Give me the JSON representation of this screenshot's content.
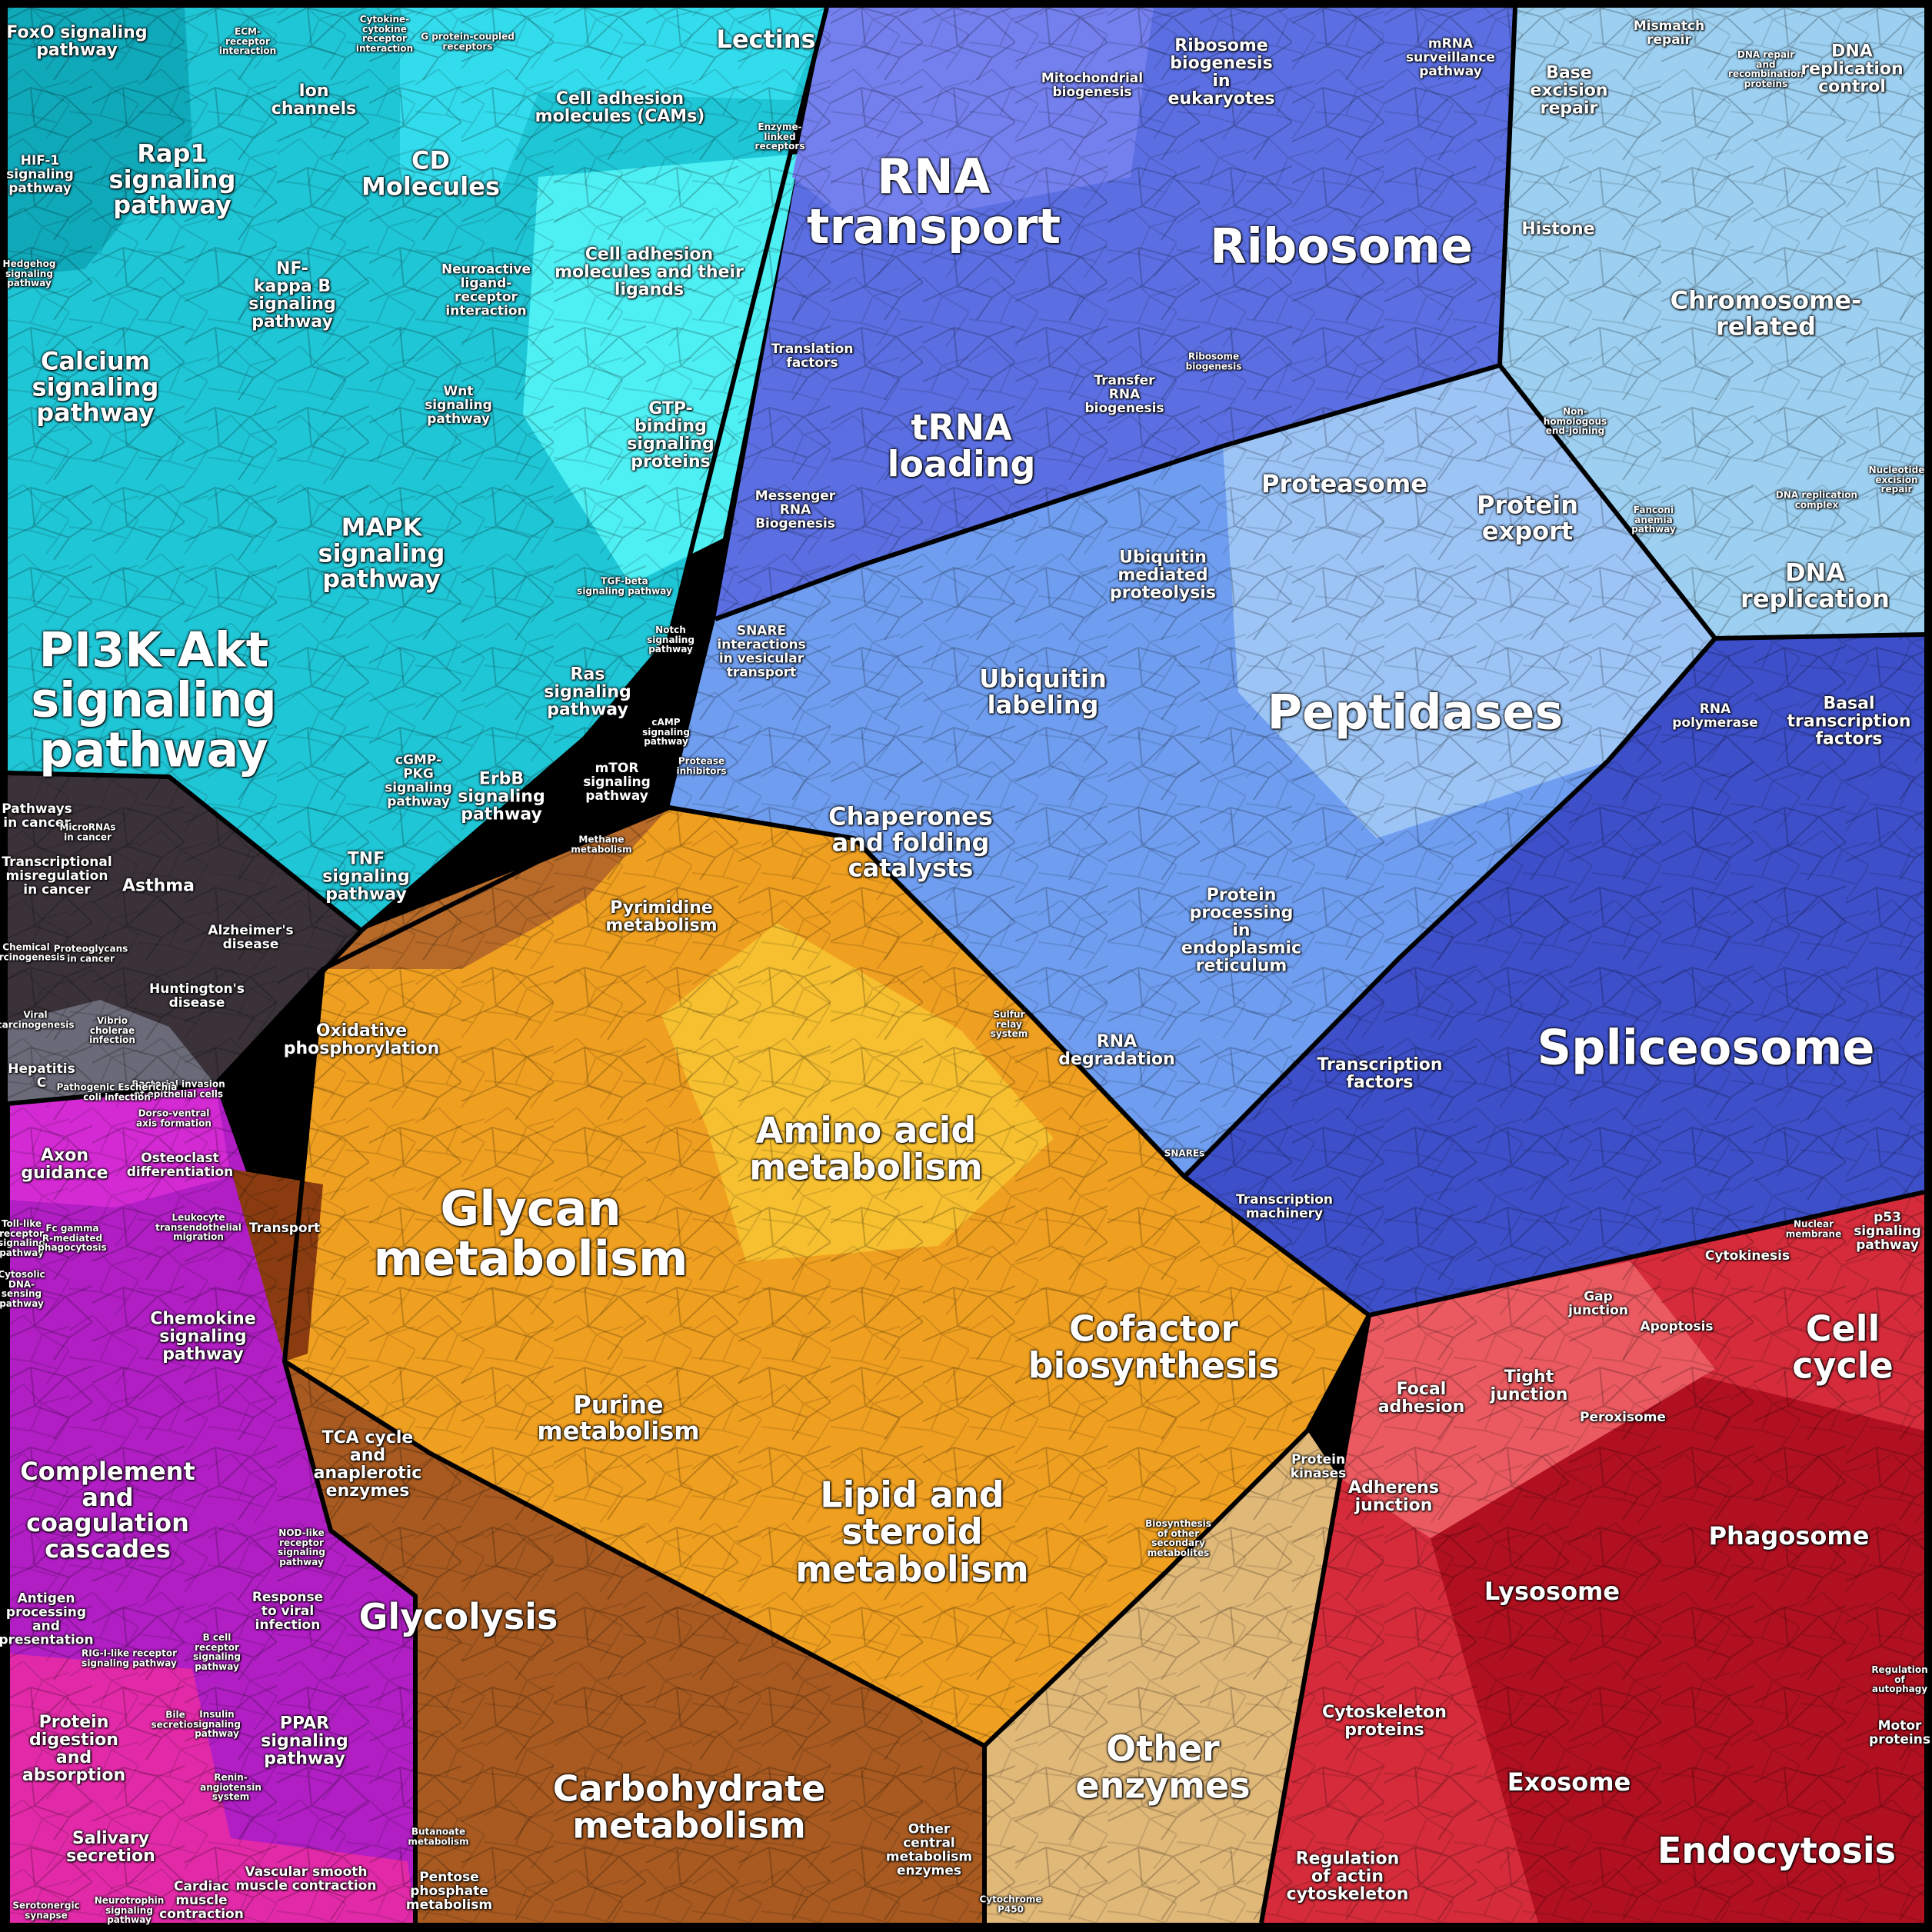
{
  "categories": {
    "signaling": {
      "color": "#1fc6d6",
      "labels": {
        "foxo": "FoxO signaling\npathway",
        "ecm": "ECM-\nreceptor\ninteraction",
        "cytokine": "Cytokine-\ncytokine\nreceptor\ninteraction",
        "gpcr": "G protein-coupled\nreceptors",
        "lectins": "Lectins",
        "ion_channels": "Ion\nchannels",
        "cams": "Cell adhesion\nmolecules (CAMs)",
        "hif1": "HIF-1\nsignaling\npathway",
        "rap1": "Rap1\nsignaling\npathway",
        "cd": "CD\nMolecules",
        "hedgehog": "Hedgehog\nsignaling\npathway",
        "nfkb": "NF-\nkappa B\nsignaling\npathway",
        "neuroactive": "Neuroactive\nligand-\nreceptor\ninteraction",
        "cam_ligands": "Cell adhesion\nmolecules and their\nligands",
        "enzyme_linked": "Enzyme-\nlinked\nreceptors",
        "calcium": "Calcium\nsignaling\npathway",
        "wnt": "Wnt\nsignaling\npathway",
        "gtp": "GTP-\nbinding\nsignaling\nproteins",
        "mapk": "MAPK\nsignaling\npathway",
        "tgfb": "TGF-beta\nsignaling pathway",
        "notch": "Notch\nsignaling\npathway",
        "pi3k": "PI3K-Akt\nsignaling\npathway",
        "ras": "Ras\nsignaling\npathway",
        "camp": "cAMP\nsignaling\npathway",
        "cgmp": "cGMP-\nPKG\nsignaling\npathway",
        "erbb": "ErbB\nsignaling\npathway",
        "mtor": "mTOR\nsignaling\npathway",
        "tnf": "TNF\nsignaling\npathway"
      }
    },
    "disease": {
      "color": "#3a3238",
      "labels": {
        "pathways_cancer": "Pathways\nin cancer",
        "microrna": "MicroRNAs\nin cancer",
        "transcriptional": "Transcriptional\nmisregulation\nin cancer",
        "asthma": "Asthma",
        "chemical": "Chemical\ncarcinogenesis",
        "proteoglycans": "Proteoglycans\nin cancer",
        "alzheimers": "Alzheimer's\ndisease",
        "huntingtons": "Huntington's\ndisease",
        "viral": "Viral\ncarcinogenesis",
        "vibrio": "Vibrio\ncholerae\ninfection",
        "hepatitis": "Hepatitis\nC",
        "bacterial": "Bacterial invasion\nof epithelial cells",
        "pathogenic": "Pathogenic Escherichia\ncoli infection"
      }
    },
    "organismal": {
      "color": "#c21fb8",
      "labels": {
        "dorsoventral": "Dorso-ventral\naxis formation",
        "axon": "Axon\nguidance",
        "osteoclast": "Osteoclast\ndifferentiation",
        "tolllike": "Toll-like\nreceptor\nsignaling\npathway",
        "fcgamma": "Fc gamma\nR-mediated\nphagocytosis",
        "leukocyte": "Leukocyte\ntransendothelial\nmigration",
        "cytosolic": "Cytosolic\nDNA-\nsensing\npathway",
        "chemokine": "Chemokine\nsignaling\npathway",
        "complement": "Complement\nand\ncoagulation\ncascades",
        "nodlike": "NOD-like\nreceptor\nsignaling\npathway",
        "antigen": "Antigen\nprocessing\nand\npresentation",
        "viral_response": "Response\nto viral\ninfection",
        "riglike": "RIG-I-like receptor\nsignaling pathway",
        "bcell": "B cell\nreceptor\nsignaling\npathway",
        "protein_digestion": "Protein\ndigestion\nand\nabsorption",
        "bile": "Bile\nsecretion",
        "insulin": "Insulin\nsignaling\npathway",
        "ppar": "PPAR\nsignaling\npathway",
        "renin": "Renin-\nangiotensin\nsystem",
        "salivary": "Salivary\nsecretion",
        "vascular": "Vascular smooth\nmuscle contraction",
        "cardiac": "Cardiac\nmuscle\ncontraction",
        "serotonergic": "Serotonergic\nsynapse",
        "neurotrophin": "Neurotrophin\nsignaling\npathway"
      }
    },
    "genetic": {
      "color": "#5b6fe3",
      "labels": {
        "mitochondrial": "Mitochondrial\nbiogenesis",
        "ribo_euk": "Ribosome\nbiogenesis\nin\neukaryotes",
        "mrna": "mRNA\nsurveillance\npathway",
        "rna_transport": "RNA\ntransport",
        "ribosome": "Ribosome",
        "translation": "Translation\nfactors",
        "trna": "tRNA\nloading",
        "transfer_rna": "Transfer\nRNA\nbiogenesis",
        "ribo_bio": "Ribosome\nbiogenesis",
        "messenger": "Messenger\nRNA\nBiogenesis"
      }
    },
    "repair": {
      "color": "#9dd0f0",
      "labels": {
        "mismatch": "Mismatch\nrepair",
        "dna_recomb": "DNA repair\nand\nrecombination\nproteins",
        "dna_rep_control": "DNA\nreplication\ncontrol",
        "base_excision": "Base\nexcision\nrepair",
        "histone": "Histone",
        "chromosome": "Chromosome-\nrelated",
        "nonhomologous": "Non-\nhomologous\nend-joining",
        "nucleotide_excision": "Nucleotide\nexcision\nrepair",
        "fanconi": "Fanconi\nanemia\npathway",
        "dna_rep_complex": "DNA replication\ncomplex",
        "dna_replication": "DNA\nreplication"
      }
    },
    "folding": {
      "color": "#6f9ef0",
      "labels": {
        "proteasome": "Proteasome",
        "protein_export": "Protein\nexport",
        "ubiquitin_mediated": "Ubiquitin\nmediated\nproteolysis",
        "snare": "SNARE\ninteractions\nin vesicular\ntransport",
        "ubiquitin_labeling": "Ubiquitin\nlabeling",
        "peptidases": "Peptidases",
        "protease_inhib": "Protease\ninhibitors",
        "chaperones": "Chaperones\nand folding\ncatalysts",
        "er_processing": "Protein\nprocessing\nin\nendoplasmic\nreticulum",
        "sulfur": "Sulfur\nrelay\nsystem",
        "rna_degradation": "RNA\ndegradation"
      }
    },
    "transcription": {
      "color": "#3d4fc9",
      "labels": {
        "rna_polymerase": "RNA\npolymerase",
        "basal": "Basal\ntranscription\nfactors",
        "transcription_factors": "Transcription\nfactors",
        "spliceosome": "Spliceosome",
        "snares": "SNAREs",
        "transcription_machinery": "Transcription\nmachinery"
      }
    },
    "metabolism_core": {
      "color": "#f0a020",
      "labels": {
        "methane": "Methane\nmetabolism",
        "pyrimidine": "Pyrimidine\nmetabolism",
        "amino_acid": "Amino acid\nmetabolism",
        "glycan": "Glycan\nmetabolism",
        "cofactor": "Cofactor\nbiosynthesis",
        "purine": "Purine\nmetabolism",
        "lipid": "Lipid and\nsteroid\nmetabolism",
        "protein_kinases": "Protein\nkinases",
        "biosynthesis_other": "Biosynthesis\nof other\nsecondary\nmetabolites"
      }
    },
    "energy": {
      "color": "#b86a28",
      "labels": {
        "oxidative": "Oxidative\nphosphorylation",
        "transport": "Transport",
        "tca": "TCA cycle\nand\nanaplerotic\nenzymes",
        "glycolysis": "Glycolysis",
        "carbohydrate": "Carbohydrate\nmetabolism",
        "butanoate": "Butanoate\nmetabolism",
        "pentose": "Pentose\nphosphate\nmetabolism",
        "other_central": "Other\ncentral\nmetabolism\nenzymes"
      }
    },
    "other": {
      "color": "#e0b878",
      "labels": {
        "other_enzymes": "Other\nenzymes",
        "cytochrome": "Cytochrome\nP450"
      }
    },
    "cellular": {
      "color": "#d52b3a",
      "labels": {
        "p53": "p53\nsignaling\npathway",
        "nuclear_membrane": "Nuclear\nmembrane",
        "cytokinesis": "Cytokinesis",
        "gap_junction": "Gap\njunction",
        "apoptosis": "Apoptosis",
        "cell_cycle": "Cell\ncycle",
        "focal": "Focal\nadhesion",
        "tight": "Tight\njunction",
        "peroxisome": "Peroxisome",
        "adherens": "Adherens\njunction",
        "phagosome": "Phagosome",
        "lysosome": "Lysosome",
        "regulation_autophagy": "Regulation\nof\nautophagy",
        "cytoskeleton": "Cytoskeleton\nproteins",
        "motor": "Motor\nproteins",
        "exosome": "Exosome",
        "regulation_actin": "Regulation\nof actin\ncytoskeleton",
        "endocytosis": "Endocytosis"
      }
    }
  }
}
